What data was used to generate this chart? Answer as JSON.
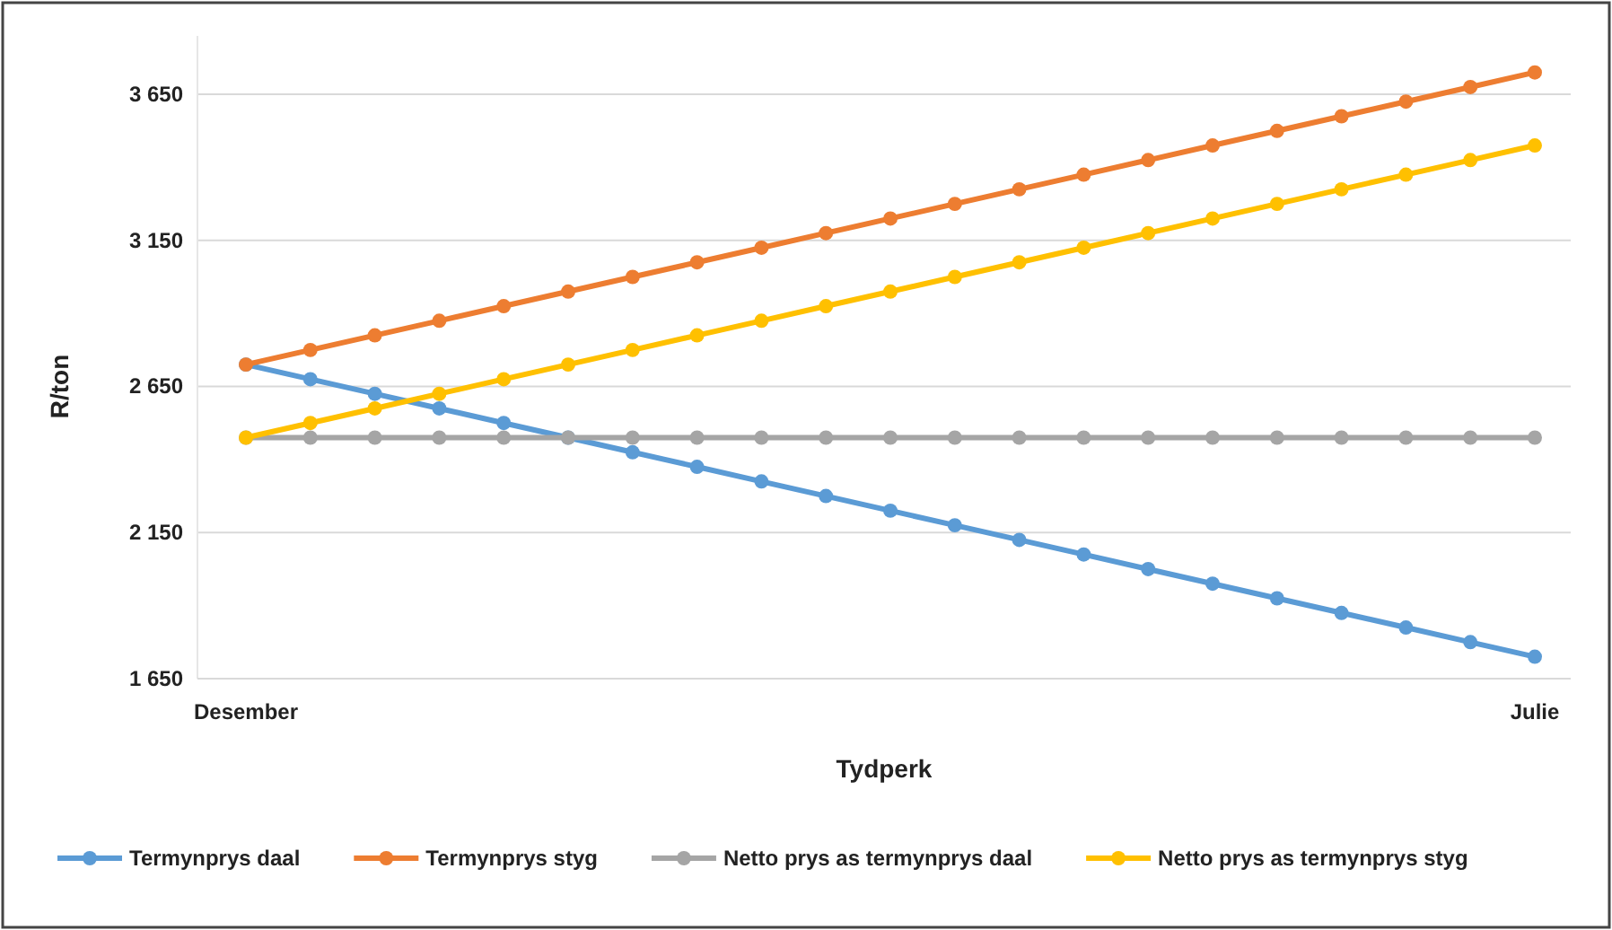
{
  "chart_data": {
    "type": "line",
    "xlabel": "Tydperk",
    "ylabel": "R/ton",
    "categories": [
      "Desember",
      null,
      null,
      null,
      null,
      null,
      null,
      null,
      null,
      null,
      null,
      null,
      null,
      null,
      null,
      null,
      null,
      null,
      null,
      null,
      "Julie"
    ],
    "series": [
      {
        "name": "Termynprys daal",
        "color": "#5b9bd5",
        "values": [
          2725,
          2675,
          2625,
          2575,
          2525,
          2475,
          2425,
          2375,
          2325,
          2275,
          2225,
          2175,
          2125,
          2075,
          2025,
          1975,
          1925,
          1875,
          1825,
          1775,
          1725
        ]
      },
      {
        "name": "Termynprys styg",
        "color": "#ed7d31",
        "values": [
          2725,
          2775,
          2825,
          2875,
          2925,
          2975,
          3025,
          3075,
          3125,
          3175,
          3225,
          3275,
          3325,
          3375,
          3425,
          3475,
          3525,
          3575,
          3625,
          3675,
          3725
        ]
      },
      {
        "name": "Netto prys as termynprys daal",
        "color": "#a5a5a5",
        "values": [
          2475,
          2475,
          2475,
          2475,
          2475,
          2475,
          2475,
          2475,
          2475,
          2475,
          2475,
          2475,
          2475,
          2475,
          2475,
          2475,
          2475,
          2475,
          2475,
          2475,
          2475
        ]
      },
      {
        "name": "Netto prys as termynprys styg",
        "color": "#ffc000",
        "values": [
          2475,
          2525,
          2575,
          2625,
          2675,
          2725,
          2775,
          2825,
          2875,
          2925,
          2975,
          3025,
          3075,
          3125,
          3175,
          3225,
          3275,
          3325,
          3375,
          3425,
          3475
        ]
      }
    ],
    "ylim": [
      1650,
      3850
    ],
    "yticks": [
      {
        "value": 1650,
        "label": "1 650"
      },
      {
        "value": 2150,
        "label": "2 150"
      },
      {
        "value": 2650,
        "label": "2 650"
      },
      {
        "value": 3150,
        "label": "3 150"
      },
      {
        "value": 3650,
        "label": "3 650"
      }
    ],
    "grid": "y",
    "legend": "bottom",
    "marker": "circle",
    "line_style": "solid"
  }
}
